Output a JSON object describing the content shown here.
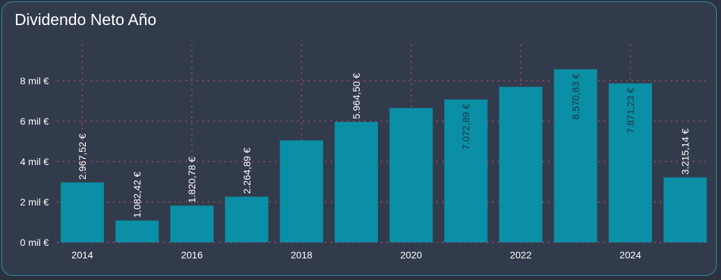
{
  "title": "Dividendo Neto Año",
  "chart_data": {
    "type": "bar",
    "title": "Dividendo Neto Año",
    "x": [
      2014,
      2015,
      2016,
      2017,
      2018,
      2019,
      2020,
      2021,
      2022,
      2023,
      2024,
      2025
    ],
    "values": [
      2967.52,
      1082.42,
      1820.78,
      2264.89,
      5050,
      5964.5,
      6650,
      7072.89,
      7700,
      8570.83,
      7871.23,
      3215.14
    ],
    "data_labels": [
      "2.967,52 €",
      "1.082,42 €",
      "1.820,78 €",
      "2.264,89 €",
      "",
      "5.964,50 €",
      "",
      "7.072,89 €",
      "",
      "8.570,83 €",
      "7.871,23 €",
      "3.215,14 €"
    ],
    "x_ticks": [
      "2014",
      "2016",
      "2018",
      "2020",
      "2022",
      "2024"
    ],
    "y_ticks": [
      {
        "value": 0,
        "label": "0 mil €"
      },
      {
        "value": 2000,
        "label": "2 mil €"
      },
      {
        "value": 4000,
        "label": "4 mil €"
      },
      {
        "value": 6000,
        "label": "6 mil €"
      },
      {
        "value": 8000,
        "label": "8 mil €"
      }
    ],
    "ylim": [
      0,
      9700
    ],
    "grid": true,
    "colors": {
      "bar": "#0a8fa6",
      "grid": "#b04a6a",
      "label_outside": "#ffffff",
      "label_inside": "#1f3440",
      "axis_text": "#ffffff"
    }
  }
}
